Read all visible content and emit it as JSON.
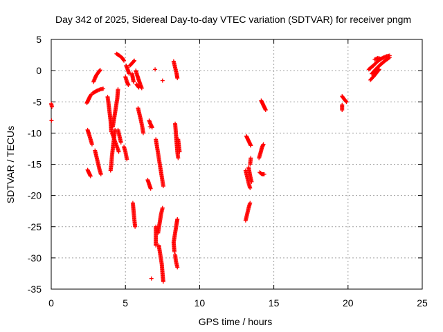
{
  "chart_data": {
    "type": "scatter",
    "title": "Day 342 of 2025, Sidereal Day-to-day VTEC variation (SDTVAR) for receiver pngm",
    "xlabel": "GPS time / hours",
    "ylabel": "SDTVAR / TECUs",
    "xlim": [
      0,
      25
    ],
    "ylim": [
      -35,
      5
    ],
    "xticks": [
      0,
      5,
      10,
      15,
      20,
      25
    ],
    "yticks": [
      5,
      0,
      -5,
      -10,
      -15,
      -20,
      -25,
      -30,
      -35
    ],
    "xtick_labels": [
      "0",
      "5",
      "10",
      "15",
      "20",
      "25"
    ],
    "ytick_labels": [
      "5",
      "0",
      "-5",
      "-10",
      "-15",
      "-20",
      "-25",
      "-30",
      "-35"
    ],
    "grid": true,
    "marker": "+",
    "color": "#ff0000",
    "series": [
      {
        "name": "SDTVAR",
        "segments": [
          [
            [
              0.0,
              -5.3
            ],
            [
              0.05,
              -5.8
            ]
          ],
          [
            [
              0.02,
              -8.0
            ]
          ],
          [
            [
              2.4,
              -5.2
            ],
            [
              2.5,
              -4.7
            ],
            [
              2.6,
              -4.2
            ],
            [
              2.7,
              -3.8
            ]
          ],
          [
            [
              2.8,
              -3.6
            ],
            [
              2.95,
              -3.4
            ],
            [
              3.1,
              -3.2
            ],
            [
              3.3,
              -3.0
            ],
            [
              3.5,
              -2.9
            ]
          ],
          [
            [
              2.85,
              -1.8
            ],
            [
              2.95,
              -1.2
            ],
            [
              3.05,
              -0.7
            ],
            [
              3.2,
              -0.2
            ],
            [
              3.3,
              0.1
            ]
          ],
          [
            [
              2.45,
              -9.5
            ],
            [
              2.55,
              -10.2
            ],
            [
              2.65,
              -11.0
            ],
            [
              2.75,
              -11.8
            ]
          ],
          [
            [
              2.45,
              -15.9
            ],
            [
              2.55,
              -16.4
            ],
            [
              2.65,
              -16.9
            ]
          ],
          [
            [
              2.95,
              -12.8
            ],
            [
              3.05,
              -13.8
            ],
            [
              3.15,
              -14.8
            ],
            [
              3.25,
              -15.8
            ],
            [
              3.35,
              -16.6
            ]
          ],
          [
            [
              3.8,
              -4.2
            ],
            [
              3.9,
              -6.0
            ],
            [
              4.0,
              -8.0
            ],
            [
              4.05,
              -9.8
            ]
          ],
          [
            [
              4.15,
              -9.0
            ],
            [
              4.25,
              -7.5
            ],
            [
              4.35,
              -6.0
            ],
            [
              4.45,
              -4.5
            ],
            [
              4.5,
              -3.0
            ]
          ],
          [
            [
              4.1,
              -10.0
            ],
            [
              4.25,
              -11.0
            ],
            [
              4.4,
              -12.0
            ],
            [
              4.55,
              -13.0
            ]
          ],
          [
            [
              4.3,
              -9.5
            ],
            [
              4.2,
              -11.5
            ],
            [
              4.1,
              -13.5
            ],
            [
              4.05,
              -15.0
            ],
            [
              4.0,
              -16.0
            ]
          ],
          [
            [
              4.5,
              -9.5
            ],
            [
              4.6,
              -10.5
            ],
            [
              4.7,
              -11.5
            ]
          ],
          [
            [
              4.9,
              -12.2
            ],
            [
              5.0,
              -13.0
            ],
            [
              5.1,
              -14.2
            ]
          ],
          [
            [
              4.4,
              2.7
            ],
            [
              4.6,
              2.4
            ],
            [
              4.8,
              2.0
            ],
            [
              4.9,
              1.6
            ]
          ],
          [
            [
              5.05,
              0.8
            ],
            [
              5.15,
              0.2
            ],
            [
              5.25,
              -0.5
            ]
          ],
          [
            [
              5.0,
              -1.0
            ],
            [
              5.1,
              -1.8
            ],
            [
              5.2,
              -2.3
            ]
          ],
          [
            [
              5.3,
              0.8
            ],
            [
              5.45,
              1.2
            ],
            [
              5.6,
              1.6
            ]
          ],
          [
            [
              5.45,
              -0.5
            ],
            [
              5.5,
              -1.2
            ],
            [
              5.55,
              -1.8
            ]
          ],
          [
            [
              5.7,
              0.0
            ],
            [
              5.8,
              -0.8
            ],
            [
              5.9,
              -1.5
            ],
            [
              6.0,
              -2.2
            ],
            [
              6.1,
              -2.8
            ]
          ],
          [
            [
              5.75,
              -2.2
            ],
            [
              5.9,
              -2.7
            ]
          ],
          [
            [
              5.85,
              -6.0
            ],
            [
              5.95,
              -7.0
            ],
            [
              6.05,
              -8.0
            ],
            [
              6.15,
              -9.2
            ],
            [
              6.2,
              -10.0
            ]
          ],
          [
            [
              6.6,
              -8.0
            ],
            [
              6.7,
              -8.6
            ],
            [
              6.8,
              -9.1
            ]
          ],
          [
            [
              6.5,
              -17.5
            ],
            [
              6.6,
              -18.2
            ],
            [
              6.7,
              -18.9
            ]
          ],
          [
            [
              7.0,
              0.2
            ]
          ],
          [
            [
              7.5,
              -1.6
            ]
          ],
          [
            [
              7.05,
              -11.0
            ],
            [
              7.15,
              -12.5
            ],
            [
              7.25,
              -14.0
            ],
            [
              7.35,
              -15.5
            ],
            [
              7.45,
              -17.0
            ],
            [
              7.55,
              -18.5
            ]
          ],
          [
            [
              6.65,
              -9.0
            ]
          ],
          [
            [
              5.5,
              -21.2
            ],
            [
              5.55,
              -22.5
            ],
            [
              5.6,
              -23.8
            ],
            [
              5.65,
              -25.0
            ]
          ],
          [
            [
              7.05,
              -25.0
            ],
            [
              7.05,
              -26.5
            ],
            [
              7.05,
              -28.0
            ]
          ],
          [
            [
              7.2,
              -26.0
            ],
            [
              7.3,
              -24.5
            ],
            [
              7.4,
              -23.0
            ],
            [
              7.5,
              -22.0
            ]
          ],
          [
            [
              7.25,
              -28.0
            ],
            [
              7.35,
              -29.5
            ],
            [
              7.45,
              -31.0
            ],
            [
              7.5,
              -32.5
            ],
            [
              7.55,
              -33.8
            ]
          ],
          [
            [
              6.75,
              -33.3
            ]
          ],
          [
            [
              8.25,
              1.5
            ],
            [
              8.35,
              0.5
            ],
            [
              8.45,
              -0.5
            ],
            [
              8.5,
              -1.2
            ]
          ],
          [
            [
              8.35,
              -8.5
            ],
            [
              8.4,
              -10.0
            ],
            [
              8.45,
              -11.5
            ],
            [
              8.5,
              -13.0
            ],
            [
              8.55,
              -14.0
            ]
          ],
          [
            [
              8.55,
              -11.0
            ],
            [
              8.6,
              -12.0
            ],
            [
              8.65,
              -13.0
            ]
          ],
          [
            [
              8.3,
              -29.0
            ],
            [
              8.25,
              -27.5
            ],
            [
              8.35,
              -26.0
            ],
            [
              8.45,
              -24.5
            ],
            [
              8.5,
              -23.8
            ]
          ],
          [
            [
              8.35,
              -29.5
            ],
            [
              8.4,
              -30.5
            ],
            [
              8.5,
              -31.5
            ]
          ],
          [
            [
              13.1,
              -24.0
            ],
            [
              13.2,
              -23.0
            ],
            [
              13.3,
              -22.0
            ],
            [
              13.4,
              -21.2
            ]
          ],
          [
            [
              13.1,
              -16.0
            ],
            [
              13.2,
              -17.0
            ],
            [
              13.3,
              -18.0
            ],
            [
              13.4,
              -18.8
            ]
          ],
          [
            [
              13.3,
              -15.5
            ],
            [
              13.4,
              -16.8
            ],
            [
              13.5,
              -17.8
            ]
          ],
          [
            [
              13.15,
              -10.5
            ],
            [
              13.25,
              -11.0
            ],
            [
              13.35,
              -11.5
            ],
            [
              13.45,
              -12.0
            ]
          ],
          [
            [
              13.4,
              -15.0
            ],
            [
              13.45,
              -14.0
            ]
          ],
          [
            [
              14.0,
              -14.0
            ],
            [
              14.1,
              -13.2
            ],
            [
              14.2,
              -12.3
            ],
            [
              14.3,
              -11.8
            ]
          ],
          [
            [
              14.05,
              -16.3
            ],
            [
              14.2,
              -16.6
            ],
            [
              14.35,
              -16.6
            ]
          ],
          [
            [
              14.15,
              -4.8
            ],
            [
              14.25,
              -5.3
            ],
            [
              14.35,
              -5.8
            ],
            [
              14.45,
              -6.3
            ]
          ],
          [
            [
              19.6,
              -5.5
            ],
            [
              19.6,
              -6.3
            ]
          ],
          [
            [
              19.6,
              -4.1
            ],
            [
              19.75,
              -4.6
            ],
            [
              19.9,
              -5.0
            ]
          ],
          [
            [
              21.4,
              0.2
            ],
            [
              21.7,
              0.8
            ],
            [
              22.0,
              1.5
            ],
            [
              22.3,
              2.0
            ],
            [
              22.6,
              2.3
            ],
            [
              22.8,
              2.4
            ]
          ],
          [
            [
              21.6,
              -0.5
            ],
            [
              21.9,
              0.3
            ],
            [
              22.2,
              1.0
            ],
            [
              22.5,
              1.6
            ],
            [
              22.8,
              2.1
            ]
          ],
          [
            [
              21.5,
              -1.5
            ],
            [
              21.7,
              -1.0
            ],
            [
              21.9,
              -0.4
            ],
            [
              22.1,
              0.2
            ]
          ],
          [
            [
              21.8,
              1.8
            ],
            [
              22.0,
              2.0
            ],
            [
              22.2,
              1.9
            ]
          ]
        ]
      }
    ]
  }
}
